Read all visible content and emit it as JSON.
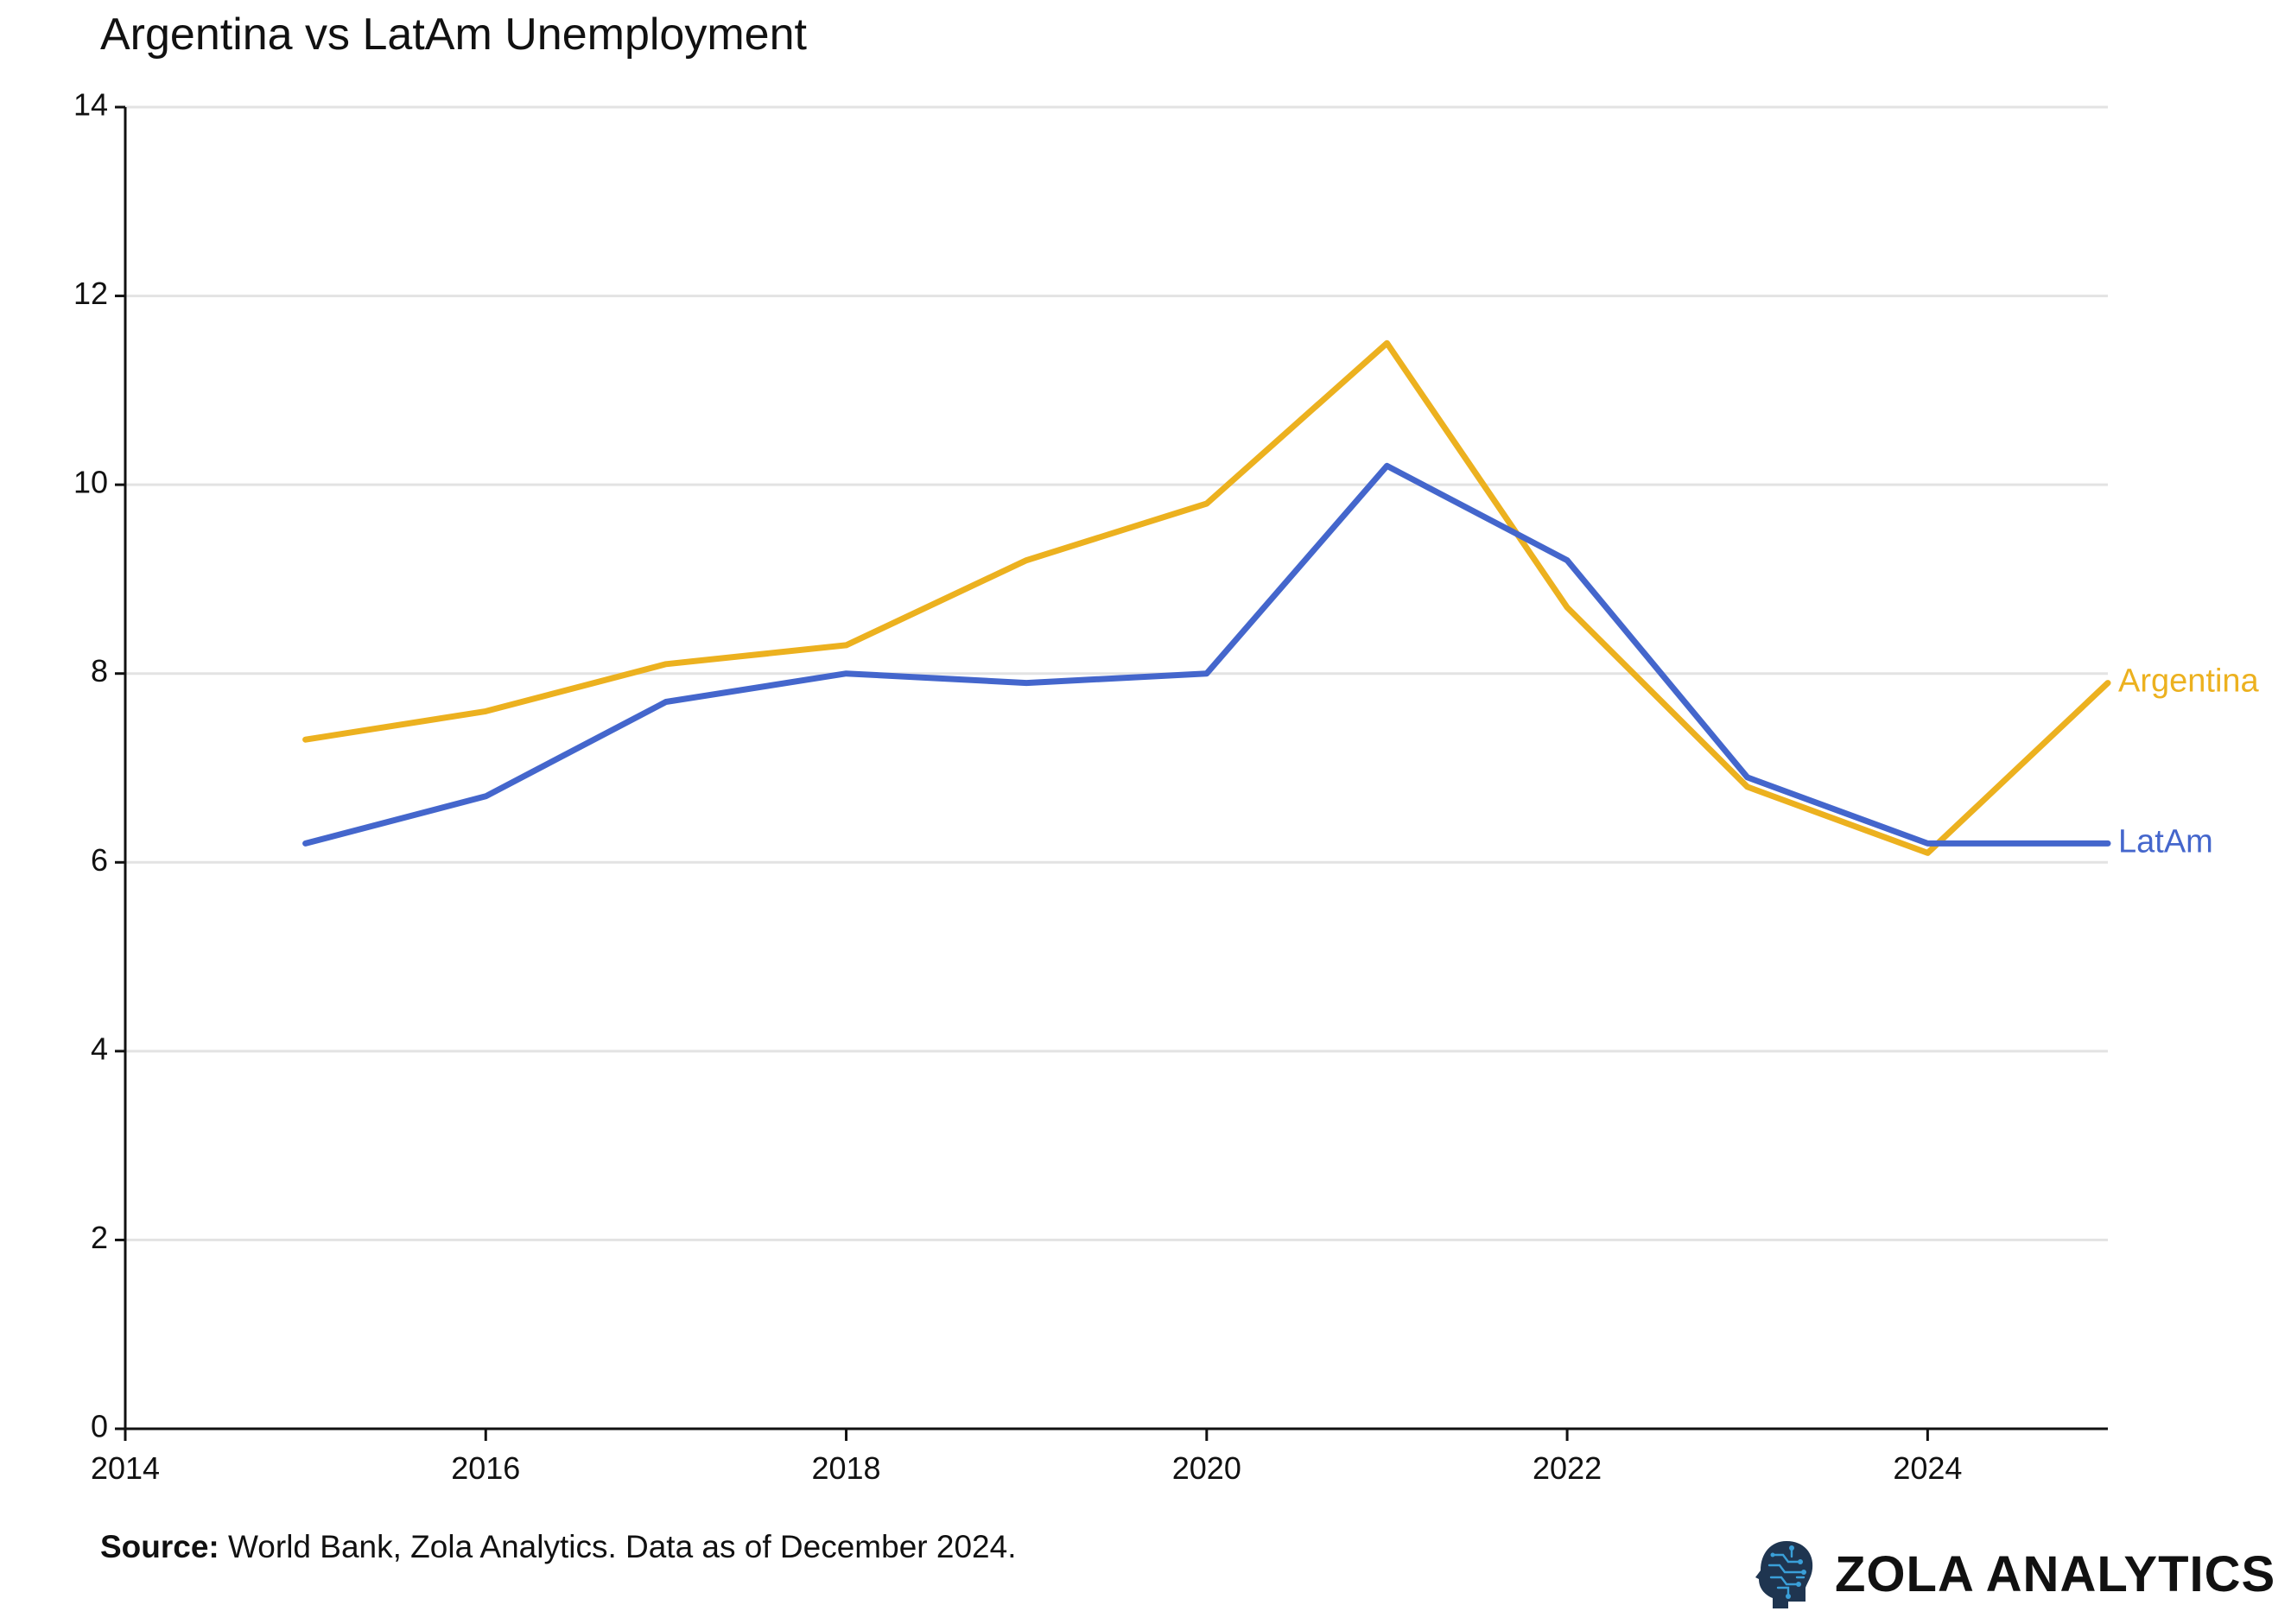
{
  "chart_data": {
    "type": "line",
    "title": "Argentina vs LatAm Unemployment",
    "xlabel": "",
    "ylabel": "",
    "xlim": [
      2014,
      2025
    ],
    "ylim": [
      0,
      14
    ],
    "x_ticks": [
      2014,
      2016,
      2018,
      2020,
      2022,
      2024
    ],
    "y_ticks": [
      0,
      2,
      4,
      6,
      8,
      10,
      12,
      14
    ],
    "grid": "horizontal",
    "x": [
      2015,
      2016,
      2017,
      2018,
      2019,
      2020,
      2021,
      2022,
      2023,
      2024,
      2025
    ],
    "series": [
      {
        "name": "Argentina",
        "color": "#ECB11F",
        "values": [
          7.3,
          7.6,
          8.1,
          8.3,
          9.2,
          9.8,
          11.5,
          8.7,
          6.8,
          6.1,
          7.9
        ]
      },
      {
        "name": "LatAm",
        "color": "#4466CC",
        "values": [
          6.2,
          6.7,
          7.7,
          8.0,
          7.9,
          8.0,
          10.2,
          9.2,
          6.9,
          6.2,
          6.2
        ]
      }
    ]
  },
  "footer": {
    "source_label": "Source:",
    "source_text": " World Bank, Zola Analytics. Data as of December 2024.",
    "brand_name": "ZOLA ANALYTICS"
  },
  "brand_colors": {
    "logo_dark": "#1F3550",
    "logo_light": "#3A9FD8"
  }
}
